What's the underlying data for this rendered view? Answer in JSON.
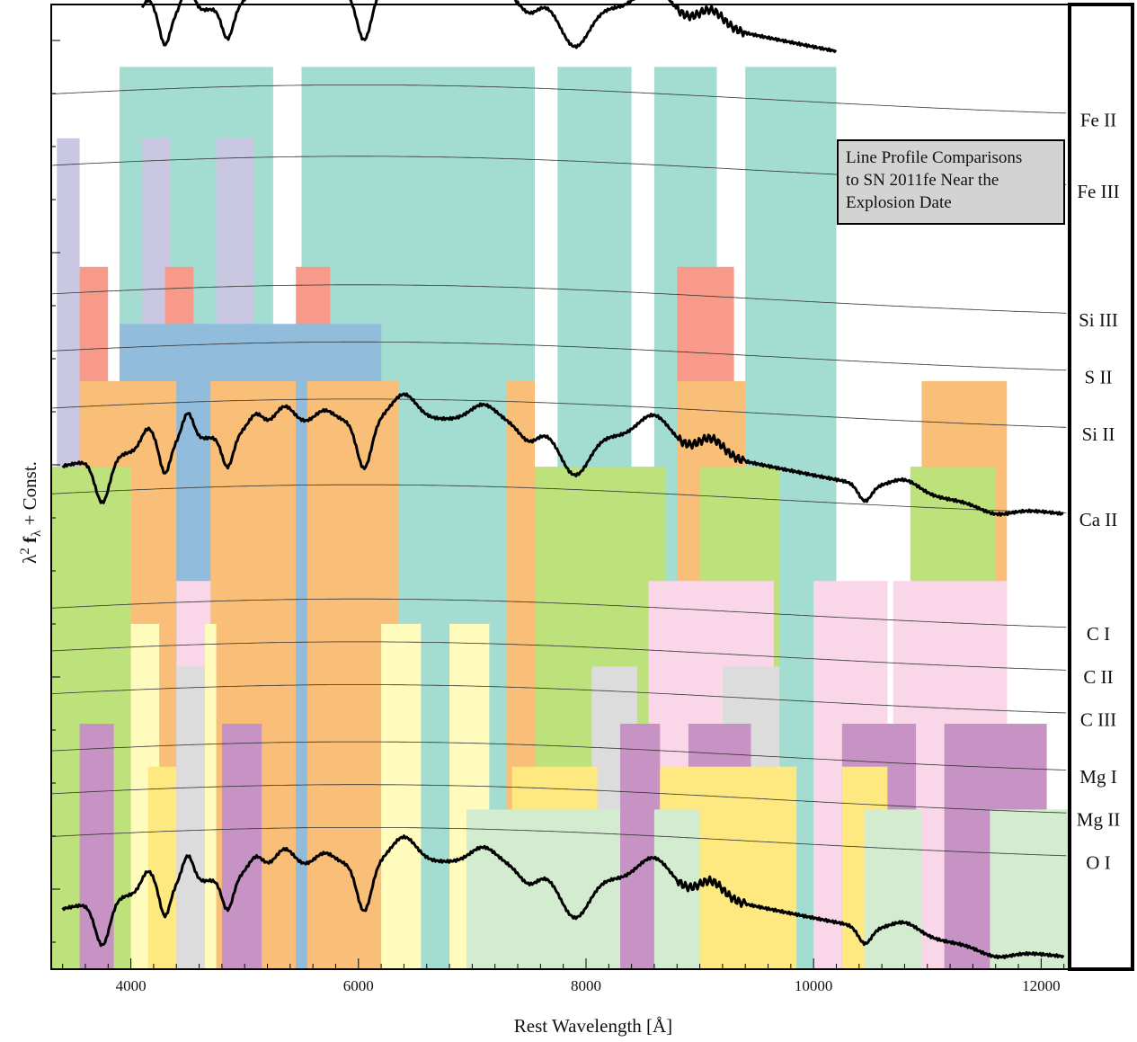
{
  "chart_data": {
    "type": "line",
    "xlabel": "Rest Wavelength [Å]",
    "ylabel_parts": [
      "λ",
      "2",
      "f",
      "λ",
      "+ Const."
    ],
    "xlim": [
      3300,
      12250
    ],
    "xticks": [
      4000,
      6000,
      8000,
      10000,
      12000
    ],
    "x_tick_labels": [
      "4000",
      "6000",
      "8000",
      "10000",
      "12000"
    ],
    "inset_lines": [
      "Line Profile Comparisons",
      "to SN 2011fe Near the",
      "Explosion Date"
    ],
    "ions": [
      {
        "name": "Fe II",
        "offset": 11.0,
        "color": "#a3ddd1",
        "regions": [
          [
            3900,
            5250
          ],
          [
            5500,
            7550
          ],
          [
            7750,
            8400
          ],
          [
            8600,
            9150
          ],
          [
            9400,
            10200
          ]
        ]
      },
      {
        "name": "Fe III",
        "offset": 10.0,
        "color": "#c9c7e1",
        "regions": [
          [
            3350,
            3550
          ],
          [
            4100,
            4350
          ],
          [
            4750,
            5080
          ]
        ]
      },
      {
        "name": "Si III",
        "offset": 8.2,
        "color": "#f79a8a",
        "regions": [
          [
            3550,
            3800
          ],
          [
            4300,
            4550
          ],
          [
            5450,
            5750
          ],
          [
            8800,
            9300
          ]
        ]
      },
      {
        "name": "S II",
        "offset": 7.4,
        "color": "#91bcdb",
        "regions": [
          [
            3900,
            5750
          ],
          [
            5750,
            6200
          ],
          [
            4400,
            4700
          ],
          [
            5000,
            5100
          ],
          [
            5450,
            5550
          ]
        ]
      },
      {
        "name": "Si II",
        "offset": 6.6,
        "color": "#f9be78",
        "regions": [
          [
            3550,
            4400
          ],
          [
            4700,
            5450
          ],
          [
            5550,
            6350
          ],
          [
            7300,
            7550
          ],
          [
            8800,
            9400
          ],
          [
            10950,
            11700
          ]
        ]
      },
      {
        "name": "Ca II",
        "offset": 5.4,
        "color": "#bde27b",
        "regions": [
          [
            3300,
            3550
          ],
          [
            3300,
            4000
          ],
          [
            7550,
            8700
          ],
          [
            9000,
            9700
          ],
          [
            10850,
            11600
          ]
        ]
      },
      {
        "name": "C I",
        "offset": 3.8,
        "color": "#fad7e8",
        "regions": [
          [
            4400,
            4700
          ],
          [
            8550,
            9650
          ],
          [
            10000,
            10650
          ],
          [
            10700,
            11700
          ]
        ]
      },
      {
        "name": "C II",
        "offset": 3.2,
        "color": "#fefbbd",
        "regions": [
          [
            4000,
            4250
          ],
          [
            4650,
            4750
          ],
          [
            6200,
            6550
          ],
          [
            6800,
            7150
          ]
        ]
      },
      {
        "name": "C III",
        "offset": 2.6,
        "color": "#dcdcdc",
        "regions": [
          [
            4400,
            4650
          ],
          [
            8050,
            8450
          ],
          [
            9200,
            9700
          ]
        ]
      },
      {
        "name": "Mg I",
        "offset": 1.8,
        "color": "#c793c5",
        "regions": [
          [
            3550,
            3850
          ],
          [
            4800,
            5150
          ],
          [
            8300,
            8650
          ],
          [
            8900,
            9450
          ],
          [
            10250,
            10900
          ],
          [
            11150,
            12050
          ]
        ]
      },
      {
        "name": "Mg II",
        "offset": 1.2,
        "color": "#fee880",
        "regions": [
          [
            4150,
            4400
          ],
          [
            7350,
            8100
          ],
          [
            8650,
            9850
          ],
          [
            10250,
            10650
          ]
        ]
      },
      {
        "name": "O I",
        "offset": 0.6,
        "color": "#d3ebcf",
        "regions": [
          [
            6950,
            8300
          ],
          [
            8600,
            9000
          ],
          [
            10450,
            10950
          ],
          [
            11550,
            12250
          ]
        ]
      }
    ]
  }
}
